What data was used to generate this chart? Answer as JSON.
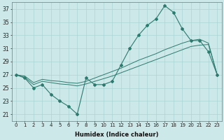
{
  "xlabel": "Humidex (Indice chaleur)",
  "ylabel": "",
  "x": [
    0,
    1,
    2,
    3,
    4,
    5,
    6,
    7,
    8,
    9,
    10,
    11,
    12,
    13,
    14,
    15,
    16,
    17,
    18,
    19,
    20,
    21,
    22,
    23
  ],
  "line1_y": [
    27,
    26.5,
    25,
    25.5,
    24,
    23,
    22.2,
    21,
    26.5,
    25.5,
    25.5,
    26,
    28.5,
    31,
    33,
    34.5,
    35.5,
    37.5,
    36.5,
    34,
    32.2,
    32.2,
    30.5,
    27
  ],
  "line2_y": [
    27,
    26.6,
    25.5,
    26.0,
    25.8,
    25.6,
    25.5,
    25.3,
    25.6,
    26.0,
    26.4,
    26.8,
    27.3,
    27.8,
    28.3,
    28.8,
    29.3,
    29.8,
    30.3,
    30.8,
    31.3,
    31.5,
    31.6,
    27.0
  ],
  "line3_y": [
    27,
    26.8,
    25.8,
    26.3,
    26.1,
    26.0,
    25.8,
    25.7,
    26.0,
    26.5,
    27.0,
    27.5,
    28.0,
    28.6,
    29.2,
    29.7,
    30.2,
    30.8,
    31.3,
    31.8,
    32.2,
    32.4,
    31.8,
    27.0
  ],
  "bg_color": "#cce8e8",
  "grid_color": "#aad4d4",
  "line_color": "#2d7a6e",
  "ylim": [
    20,
    38
  ],
  "yticks": [
    21,
    23,
    25,
    27,
    29,
    31,
    33,
    35,
    37
  ],
  "xticks": [
    0,
    1,
    2,
    3,
    4,
    5,
    6,
    7,
    8,
    9,
    10,
    11,
    12,
    13,
    14,
    15,
    16,
    17,
    18,
    19,
    20,
    21,
    22,
    23
  ]
}
